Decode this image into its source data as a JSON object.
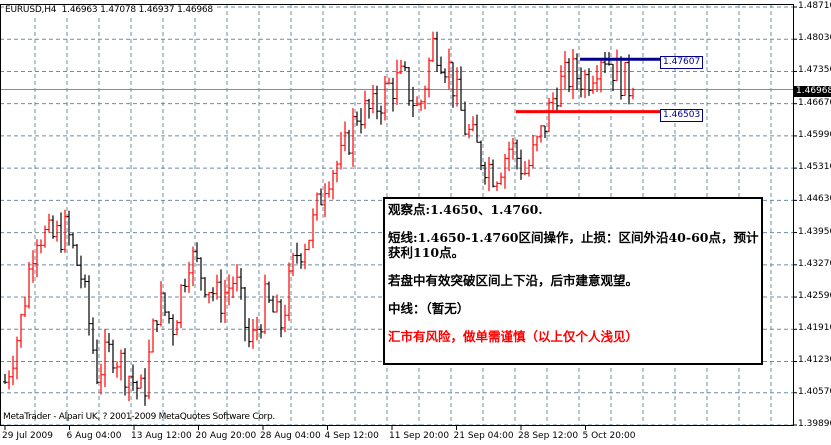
{
  "header": {
    "symbol": "EURUSD,H4",
    "open": "1.46963",
    "high": "1.47078",
    "low": "1.46937",
    "close": "1.46968"
  },
  "copyright": "MetaTrader - Alpari UK, ? 2001-2009 MetaQuotes Software Corp.",
  "note": {
    "line1": "观察点:1.4650、1.4760.",
    "line2": "短线:1.4650-1.4760区间操作，止损：区间外沿40-60点，预计获利110点。",
    "line3": "若盘中有效突破区间上下沿，后市建意观望。",
    "line4": "中线：（暂无）",
    "line5": "汇市有风险，做单需谨慎（以上仅个人浅见）"
  },
  "colors": {
    "up_bar": "#ff0000",
    "down_bar": "#000000",
    "resistance_line": "#00008b",
    "support_line": "#ff0000",
    "grid": "#708ca0"
  },
  "chart_data": {
    "type": "candlestick-bars",
    "timeframe": "H4",
    "ylim": [
      1.3989,
      1.4871
    ],
    "y_ticks": [
      "1.48710",
      "1.48030",
      "1.47350",
      "1.46670",
      "1.45990",
      "1.45310",
      "1.44630",
      "1.43950",
      "1.43270",
      "1.42590",
      "1.41910",
      "1.41230",
      "1.40570",
      "1.39890"
    ],
    "x_ticks": [
      "29 Jul 2009",
      "6 Aug 04:00",
      "13 Aug 12:00",
      "20 Aug 20:00",
      "28 Aug 04:00",
      "4 Sep 12:00",
      "11 Sep 20:00",
      "21 Sep 04:00",
      "28 Sep 12:00",
      "5 Oct 20:00"
    ],
    "grid": true,
    "current_price": "1.46968",
    "horizontal_lines": [
      {
        "price": "1.47607",
        "color": "#00008b"
      },
      {
        "price": "1.46503",
        "color": "#ff0000"
      }
    ],
    "approx_close_path": [
      1.408,
      1.42,
      1.44,
      1.438,
      1.44,
      1.43,
      1.41,
      1.415,
      1.41,
      1.405,
      1.425,
      1.42,
      1.435,
      1.43,
      1.425,
      1.43,
      1.415,
      1.425,
      1.42,
      1.435,
      1.44,
      1.452,
      1.455,
      1.465,
      1.465,
      1.47,
      1.472,
      1.465,
      1.48,
      1.474,
      1.462,
      1.456,
      1.452,
      1.458,
      1.452,
      1.46,
      1.47,
      1.473,
      1.472,
      1.478,
      1.473,
      1.4697
    ]
  }
}
